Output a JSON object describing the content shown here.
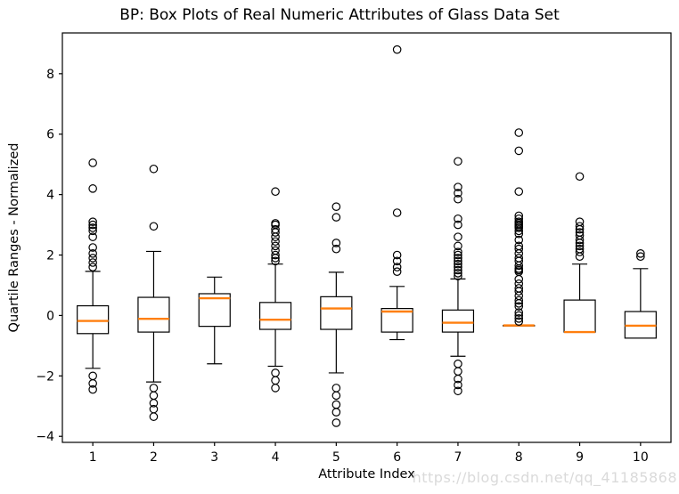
{
  "watermark": {
    "text": "https://blog.csdn.net/qq_41185868",
    "color": "#dadada"
  },
  "chart_data": {
    "type": "box",
    "title": "BP: Box Plots of Real Numeric Attributes of Glass Data Set",
    "xlabel": "Attribute Index",
    "ylabel": "Quartile Ranges - Normalized",
    "categories": [
      "1",
      "2",
      "3",
      "4",
      "5",
      "6",
      "7",
      "8",
      "9",
      "10"
    ],
    "yticks": [
      -4,
      -2,
      0,
      2,
      4,
      6,
      8
    ],
    "ytick_labels": [
      "−4",
      "−2",
      "0",
      "2",
      "4",
      "6",
      "8"
    ],
    "ylim": [
      -4.2,
      9.35
    ],
    "grid": false,
    "legend": "none",
    "box_color": "#000000",
    "median_color": "#ff7f0e",
    "boxes": [
      {
        "attribute": "1",
        "whisker_low": -1.75,
        "q1": -0.6,
        "median": -0.18,
        "q3": 0.32,
        "whisker_high": 1.46,
        "outliers_high": [
          5.05,
          4.2,
          3.1,
          3.0,
          2.9,
          2.8,
          2.6,
          2.25,
          2.05,
          1.9,
          1.75,
          1.6
        ],
        "outliers_low": [
          -2.0,
          -2.25,
          -2.45
        ]
      },
      {
        "attribute": "2",
        "whisker_low": -2.2,
        "q1": -0.55,
        "median": -0.11,
        "q3": 0.6,
        "whisker_high": 2.12,
        "outliers_high": [
          4.85,
          2.95
        ],
        "outliers_low": [
          -2.4,
          -2.65,
          -2.9,
          -3.1,
          -3.35
        ]
      },
      {
        "attribute": "3",
        "whisker_low": -1.6,
        "q1": -0.36,
        "median": 0.57,
        "q3": 0.72,
        "whisker_high": 1.27,
        "outliers_high": [],
        "outliers_low": []
      },
      {
        "attribute": "4",
        "whisker_low": -1.68,
        "q1": -0.46,
        "median": -0.14,
        "q3": 0.43,
        "whisker_high": 1.7,
        "outliers_high": [
          4.1,
          3.05,
          3.0,
          2.85,
          2.75,
          2.6,
          2.45,
          2.3,
          2.15,
          2.0,
          1.9,
          1.8
        ],
        "outliers_low": [
          -1.9,
          -2.15,
          -2.4
        ]
      },
      {
        "attribute": "5",
        "whisker_low": -1.9,
        "q1": -0.46,
        "median": 0.23,
        "q3": 0.62,
        "whisker_high": 1.43,
        "outliers_high": [
          3.6,
          3.25,
          2.4,
          2.2
        ],
        "outliers_low": [
          -2.4,
          -2.65,
          -2.95,
          -3.2,
          -3.55
        ]
      },
      {
        "attribute": "6",
        "whisker_low": -0.8,
        "q1": -0.55,
        "median": 0.13,
        "q3": 0.23,
        "whisker_high": 0.96,
        "outliers_high": [
          8.8,
          3.4,
          2.0,
          1.8,
          1.6,
          1.45
        ],
        "outliers_low": []
      },
      {
        "attribute": "7",
        "whisker_low": -1.35,
        "q1": -0.55,
        "median": -0.24,
        "q3": 0.18,
        "whisker_high": 1.21,
        "outliers_high": [
          5.1,
          4.25,
          4.05,
          3.85,
          3.2,
          3.0,
          2.6,
          2.3,
          2.1,
          2.0,
          1.9,
          1.8,
          1.7,
          1.6,
          1.5,
          1.4,
          1.3
        ],
        "outliers_low": [
          -1.6,
          -1.85,
          -2.1,
          -2.3,
          -2.5
        ]
      },
      {
        "attribute": "8",
        "whisker_low": -0.33,
        "q1": -0.33,
        "median": -0.33,
        "q3": -0.33,
        "whisker_high": -0.33,
        "outliers_high": [
          6.05,
          5.45,
          4.1,
          3.3,
          3.2,
          3.1,
          3.05,
          3.0,
          2.95,
          2.9,
          2.8,
          2.7,
          2.5,
          2.3,
          2.2,
          2.05,
          1.9,
          1.8,
          1.65,
          1.55,
          1.5,
          1.45,
          1.2,
          1.05,
          0.9,
          0.8,
          0.65,
          0.5,
          0.4,
          0.3,
          0.1,
          0.0,
          -0.1,
          -0.2
        ],
        "outliers_low": []
      },
      {
        "attribute": "9",
        "whisker_low": -0.55,
        "q1": -0.55,
        "median": -0.55,
        "q3": 0.51,
        "whisker_high": 1.7,
        "outliers_high": [
          4.6,
          3.1,
          2.95,
          2.85,
          2.75,
          2.65,
          2.5,
          2.4,
          2.3,
          2.2,
          2.1,
          1.95
        ],
        "outliers_low": []
      },
      {
        "attribute": "10",
        "whisker_low": -0.75,
        "q1": -0.75,
        "median": -0.34,
        "q3": 0.13,
        "whisker_high": 1.55,
        "outliers_high": [
          2.05,
          1.95
        ],
        "outliers_low": []
      }
    ]
  }
}
